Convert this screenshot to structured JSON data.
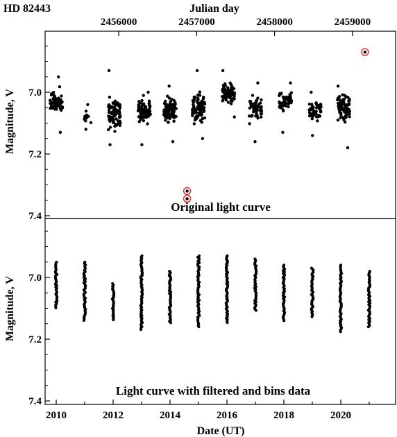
{
  "chart_data": [
    {
      "type": "scatter",
      "panel": "top",
      "title": "HD 82443",
      "top_axis_label": "Julian day",
      "top_axis_ticks": [
        2456000,
        2457000,
        2458000,
        2459000
      ],
      "ylabel": "Magnitude, V",
      "ylim": [
        6.82,
        7.4
      ],
      "y_inverted": true,
      "y_ticks": [
        7.0,
        7.2,
        7.4
      ],
      "caption": "Original light curve",
      "seasons": [
        {
          "date": 2010.0,
          "center": 7.03,
          "min": 6.95,
          "max": 7.13,
          "n": 60
        },
        {
          "date": 2011.1,
          "center": 7.08,
          "min": 7.04,
          "max": 7.12,
          "n": 14
        },
        {
          "date": 2012.05,
          "center": 7.07,
          "min": 6.93,
          "max": 7.17,
          "n": 85
        },
        {
          "date": 2013.1,
          "center": 7.06,
          "min": 7.0,
          "max": 7.17,
          "n": 80
        },
        {
          "date": 2014.0,
          "center": 7.06,
          "min": 6.98,
          "max": 7.16,
          "n": 95
        },
        {
          "date": 2015.0,
          "center": 7.05,
          "min": 6.93,
          "max": 7.15,
          "n": 90
        },
        {
          "date": 2016.05,
          "center": 7.0,
          "min": 6.93,
          "max": 7.08,
          "n": 95
        },
        {
          "date": 2017.0,
          "center": 7.05,
          "min": 6.97,
          "max": 7.16,
          "n": 60
        },
        {
          "date": 2018.05,
          "center": 7.03,
          "min": 6.97,
          "max": 7.13,
          "n": 55
        },
        {
          "date": 2019.1,
          "center": 7.06,
          "min": 7.0,
          "max": 7.14,
          "n": 55
        },
        {
          "date": 2020.1,
          "center": 7.05,
          "min": 6.98,
          "max": 7.18,
          "n": 85
        }
      ],
      "outliers_circled": [
        {
          "date": 2014.6,
          "mag": 7.32
        },
        {
          "date": 2014.6,
          "mag": 7.345
        },
        {
          "date": 2020.85,
          "mag": 6.87
        }
      ],
      "outlier_color": "#e03030"
    },
    {
      "type": "scatter",
      "panel": "bottom",
      "xlabel": "Date (UT)",
      "x_ticks": [
        2010,
        2012,
        2014,
        2016,
        2018,
        2020
      ],
      "xlim": [
        2009.5,
        2021.5
      ],
      "ylabel": "Magnitude, V",
      "ylim": [
        6.82,
        7.4
      ],
      "y_inverted": true,
      "y_ticks": [
        7.0,
        7.2,
        7.4
      ],
      "caption": "Light curve  with filtered and bins data",
      "columns": [
        {
          "date": 2010.0,
          "min": 6.95,
          "max": 7.1
        },
        {
          "date": 2011.0,
          "min": 6.95,
          "max": 7.14
        },
        {
          "date": 2012.0,
          "min": 7.02,
          "max": 7.14
        },
        {
          "date": 2013.0,
          "min": 6.93,
          "max": 7.17
        },
        {
          "date": 2014.0,
          "min": 6.98,
          "max": 7.15
        },
        {
          "date": 2015.0,
          "min": 6.93,
          "max": 7.16
        },
        {
          "date": 2016.0,
          "min": 6.93,
          "max": 7.15
        },
        {
          "date": 2017.0,
          "min": 6.94,
          "max": 7.11
        },
        {
          "date": 2018.0,
          "min": 6.96,
          "max": 7.14
        },
        {
          "date": 2019.0,
          "min": 6.97,
          "max": 7.13
        },
        {
          "date": 2020.0,
          "min": 6.96,
          "max": 7.18
        },
        {
          "date": 2021.0,
          "min": 6.98,
          "max": 7.16
        }
      ]
    }
  ]
}
